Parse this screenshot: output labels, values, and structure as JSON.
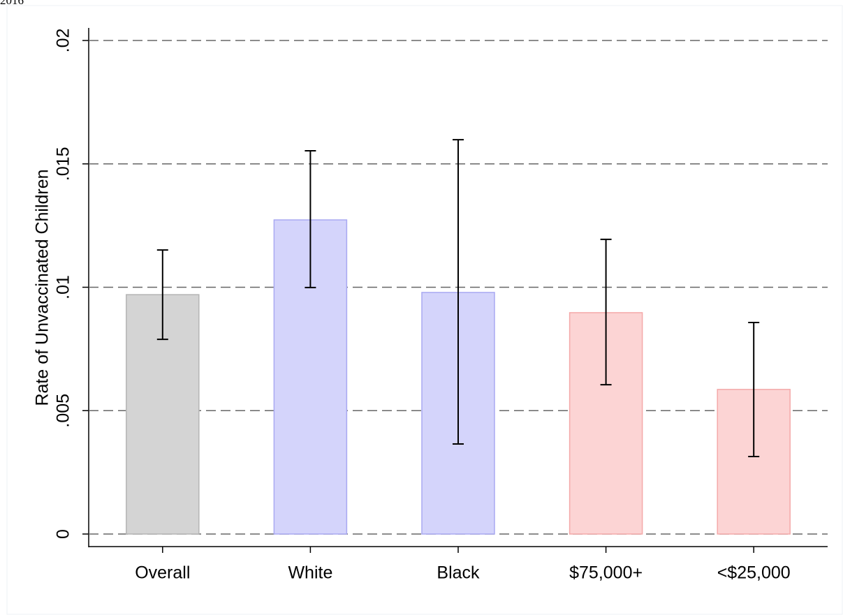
{
  "chart_data": {
    "type": "bar",
    "subtitle": "2016",
    "y_label": "Rate of Unvaccinated Children",
    "categories": [
      "Overall",
      "White",
      "Black",
      "$75,000+",
      "<$25,000"
    ],
    "values": [
      0.0097,
      0.01273,
      0.00979,
      0.00897,
      0.00586
    ],
    "ci_low": [
      0.00789,
      0.00999,
      0.00365,
      0.00605,
      0.00314
    ],
    "ci_high": [
      0.01151,
      0.01553,
      0.01598,
      0.01194,
      0.00857
    ],
    "colors": [
      "#d4d4d4",
      "#d4d4fb",
      "#d4d4fb",
      "#fcd4d4",
      "#fcd4d4"
    ],
    "stroke_colors": [
      "#b4b4b4",
      "#a9a9f2",
      "#a9a9f2",
      "#f4a9a9",
      "#f4a9a9"
    ],
    "ylim": [
      0,
      0.02
    ],
    "yticks": [
      0,
      {
        "value": 0.005,
        "label": ".005"
      },
      {
        "value": 0.01,
        "label": ".01"
      },
      {
        "value": 0.015,
        "label": ".015"
      },
      {
        "value": 0.02,
        "label": ".02"
      }
    ],
    "grid": true
  }
}
